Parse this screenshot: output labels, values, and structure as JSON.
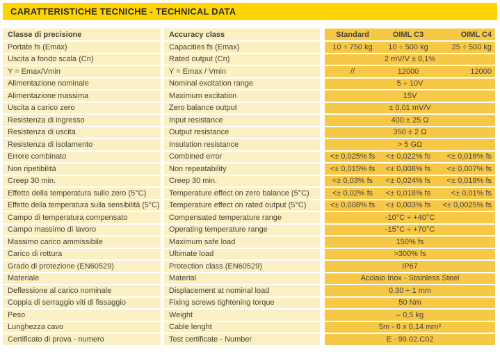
{
  "banner": {
    "title": "CARATTERISTICHE TECNICHE - TECHNICAL DATA"
  },
  "colors": {
    "banner_bg": "#FFD402",
    "cell_cream": "#FBF0C3",
    "cell_gold": "#F7C846",
    "text": "#48433A",
    "banner_text": "#2F2D28"
  },
  "table": {
    "header": {
      "it": "Classe di precisione",
      "en": "Accuracy class",
      "cols": [
        "Standard",
        "OIML C3",
        "OIML C4"
      ]
    },
    "rows": [
      {
        "it": "Portate fs (Emax)",
        "en": "Capacities fs (Emax)",
        "values": [
          "10 ÷ 750 kg",
          "10 ÷ 500 kg",
          "25 ÷ 500 kg"
        ]
      },
      {
        "it": "Uscita a fondo scala (Cn)",
        "en": "Rated output (Cn)",
        "merged": "2 mV/V ± 0,1%"
      },
      {
        "it": "Y = Emax/Vmin",
        "en": "Y = Emax / Vmin",
        "values": [
          "//",
          "12000",
          "12000"
        ]
      },
      {
        "it": "Alimentazione nominale",
        "en": "Nominal excitation range",
        "merged": "5 ÷ 10V"
      },
      {
        "it": "Alimentazione massima",
        "en": "Maximum excitation",
        "merged": "15V"
      },
      {
        "it": "Uscita a carico zero",
        "en": "Zero balance output",
        "merged": "± 0,01 mV/V"
      },
      {
        "it": "Resistenza di ingresso",
        "en": "Input resistance",
        "merged": "400 ± 25 Ω"
      },
      {
        "it": "Resistenza di uscita",
        "en": "Output resistance",
        "merged": "350 ± 2 Ω"
      },
      {
        "it": "Resistenza di isolamento",
        "en": "Insulation resistance",
        "merged": "> 5 GΩ"
      },
      {
        "it": "Errore combinato",
        "en": "Combined error",
        "values": [
          "<± 0,025% fs",
          "<± 0,022% fs",
          "<± 0,018% fs"
        ]
      },
      {
        "it": "Non ripetibilità",
        "en": "Non repeatability",
        "values": [
          "<± 0,015% fs",
          "<± 0,008% fs",
          "<± 0,007% fs"
        ]
      },
      {
        "it": "Creep 30 min.",
        "en": "Creep 30 min.",
        "values": [
          "<± 0,03% fs",
          "<± 0,024% fs",
          "<± 0,018% fs"
        ]
      },
      {
        "it": "Effetto della temperatura sullo zero (5°C)",
        "en": "Temperature effect on zero balance (5°C)",
        "values": [
          "<± 0,02% fs",
          "<± 0,018% fs",
          "<± 0,01% fs"
        ]
      },
      {
        "it": "Effetto della temperatura sulla sensibilità (5°C)",
        "en": "Temperature effect on rated output (5°C)",
        "values": [
          "<± 0,008% fs",
          "<± 0,003% fs",
          "<± 0,0025% fs"
        ]
      },
      {
        "it": "Campo di temperatura compensato",
        "en": "Compensated temperature range",
        "merged": "-10°C ÷ +40°C"
      },
      {
        "it": "Campo massimo di lavoro",
        "en": "Operating temperature range",
        "merged": "-15°C ÷ +70°C"
      },
      {
        "it": "Massimo carico ammissibile",
        "en": "Maximum safe load",
        "merged": "150% fs"
      },
      {
        "it": "Carico di rottura",
        "en": "Ultimate load",
        "merged": ">300% fs"
      },
      {
        "it": "Grado di protezione (EN60529)",
        "en": "Protection class (EN60529)",
        "merged": "IP67"
      },
      {
        "it": "Materiale",
        "en": "Material",
        "merged": "Acciaio Inox - Stainless Steel"
      },
      {
        "it": "Deflessione al carico nominale",
        "en": "Displacement at nominal load",
        "merged": "0,30 ÷ 1 mm"
      },
      {
        "it": "Coppia di serraggio viti di fissaggio",
        "en": "Fixing screws tightening torque",
        "merged": "50 Nm"
      },
      {
        "it": "Peso",
        "en": "Weight",
        "merged": "– 0,5 kg"
      },
      {
        "it": "Lunghezza cavo",
        "en": "Cable lenght",
        "merged": "5m - 6 x 0,14 mm²"
      },
      {
        "it": "Certificato di prova - numero",
        "en": "Test certificate - Number",
        "merged": "E - 99.02.C02"
      }
    ]
  }
}
